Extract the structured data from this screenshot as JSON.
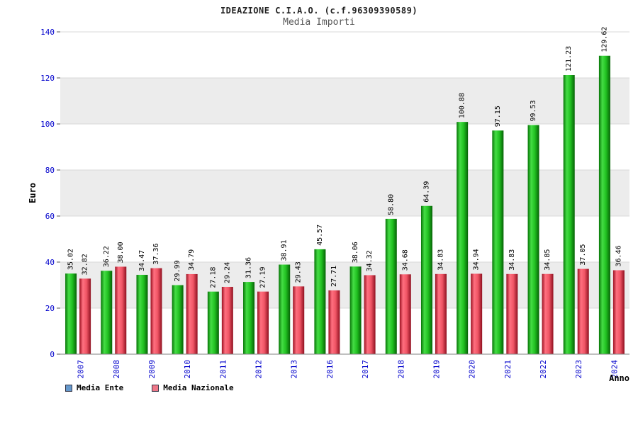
{
  "header": {
    "title": "IDEAZIONE C.I.A.O. (c.f.96309390589)",
    "subtitle": "Media Importi"
  },
  "chart_data": {
    "type": "bar",
    "title": "IDEAZIONE C.I.A.O. (c.f.96309390589)",
    "subtitle": "Media Importi",
    "xlabel": "Anno",
    "ylabel": "Euro",
    "ylim": [
      0,
      140
    ],
    "ytick_step": 20,
    "grid": "alternating-horizontal-bands",
    "band_color": "#ececec",
    "tick_label_color": "#0000cc",
    "axis_color": "#808080",
    "legend_position": "bottom-left",
    "categories": [
      "2007",
      "2008",
      "2009",
      "2010",
      "2011",
      "2012",
      "2013",
      "2016",
      "2017",
      "2018",
      "2019",
      "2020",
      "2021",
      "2022",
      "2023",
      "2024"
    ],
    "series": [
      {
        "name": "Media Ente",
        "color": "#00b000",
        "legend_color": "#6699cc",
        "gradient": [
          "#077507",
          "#45dd45",
          "#21c121",
          "#066206"
        ],
        "values": [
          35.02,
          36.22,
          34.47,
          29.99,
          27.18,
          31.36,
          38.91,
          45.57,
          38.06,
          58.8,
          64.39,
          100.88,
          97.15,
          99.53,
          121.23,
          129.62
        ]
      },
      {
        "name": "Media Nazionale",
        "color": "#ee5566",
        "legend_color": "#ee7788",
        "gradient": [
          "#9b1020",
          "#ff7080",
          "#f05565",
          "#8f1020"
        ],
        "values": [
          32.82,
          38.0,
          37.36,
          34.79,
          29.24,
          27.19,
          29.43,
          27.71,
          34.32,
          34.68,
          34.83,
          34.94,
          34.83,
          34.85,
          37.05,
          36.46
        ]
      }
    ]
  }
}
